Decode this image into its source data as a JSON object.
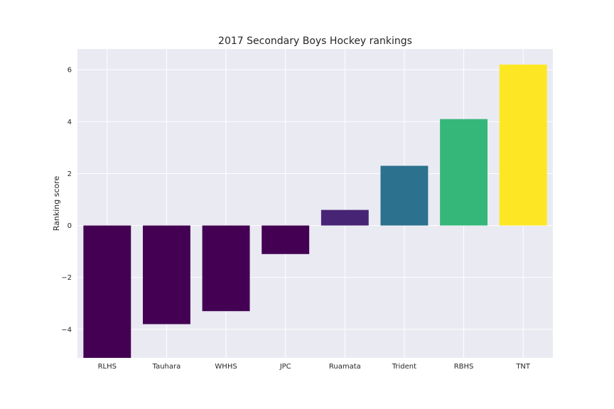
{
  "chart_data": {
    "type": "bar",
    "title": "2017 Secondary Boys Hockey rankings",
    "xlabel": "",
    "ylabel": "Ranking score",
    "categories": [
      "RLHS",
      "Tauhara",
      "WHHS",
      "JPC",
      "Ruamata",
      "Trident",
      "RBHS",
      "TNT"
    ],
    "values": [
      -5.1,
      -3.8,
      -3.3,
      -1.1,
      0.6,
      2.3,
      4.1,
      6.2
    ],
    "colors": [
      "#440154",
      "#440154",
      "#440154",
      "#440154",
      "#482475",
      "#2c718e",
      "#35b779",
      "#fde725"
    ],
    "ylim": [
      -5.1,
      6.8
    ],
    "yticks": [
      -4,
      -2,
      0,
      2,
      4,
      6
    ],
    "ytick_labels": [
      "−4",
      "−2",
      "0",
      "2",
      "4",
      "6"
    ],
    "grid": true,
    "background": "#eaeaf2"
  }
}
